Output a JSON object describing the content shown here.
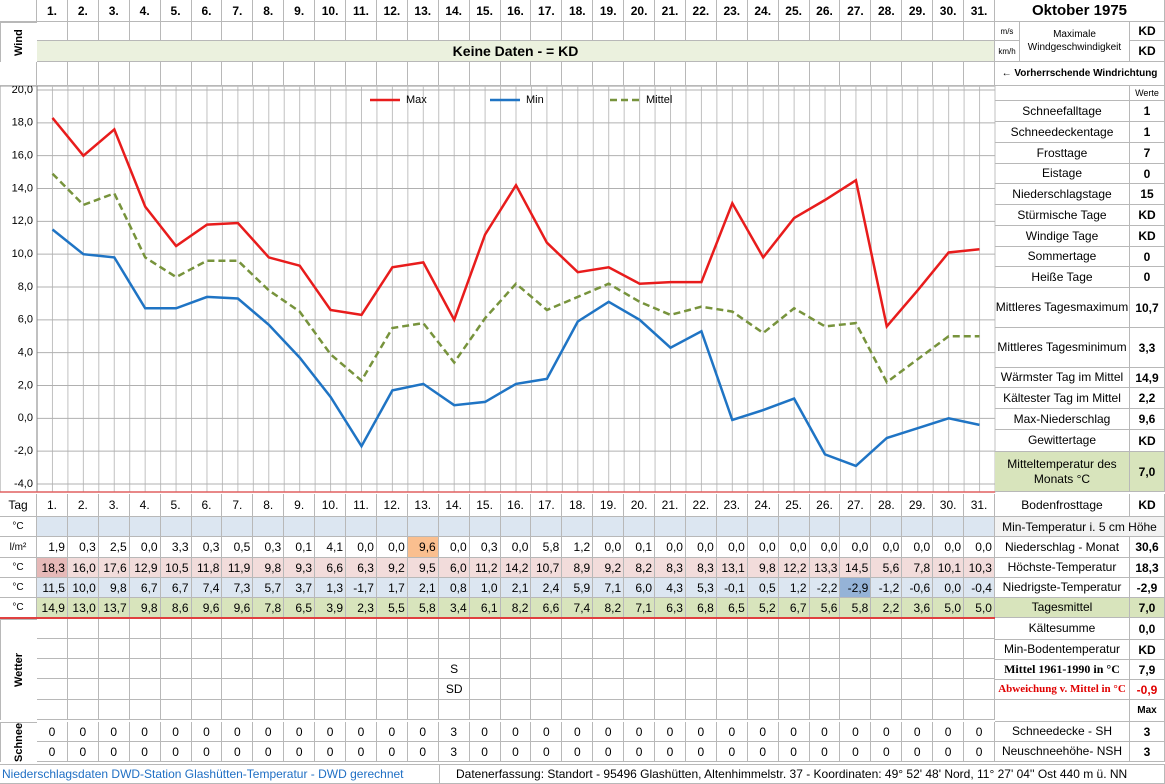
{
  "header": {
    "title": "Oktober 1975",
    "wind_label": "Wind",
    "wind_units": [
      "m/s",
      "km/h"
    ],
    "max_wind_label": "Maximale Windgeschwindigkeit",
    "max_wind_values": [
      "KD",
      "KD"
    ],
    "no_data": "Keine Daten -  = KD",
    "wind_direction": "← Vorherrschende Windrichtung"
  },
  "chart_data": {
    "type": "line",
    "categories": [
      "1.",
      "2.",
      "3.",
      "4.",
      "5.",
      "6.",
      "7.",
      "8.",
      "9.",
      "10.",
      "11.",
      "12.",
      "13.",
      "14.",
      "15.",
      "16.",
      "17.",
      "18.",
      "19.",
      "20.",
      "21.",
      "22.",
      "23.",
      "24.",
      "25.",
      "26.",
      "27.",
      "28.",
      "29.",
      "30.",
      "31."
    ],
    "series": [
      {
        "name": "Max",
        "color": "#e81c1c",
        "style": "solid",
        "values": [
          18.3,
          16.0,
          17.6,
          12.9,
          10.5,
          11.8,
          11.9,
          9.8,
          9.3,
          6.6,
          6.3,
          9.2,
          9.5,
          6.0,
          11.2,
          14.2,
          10.7,
          8.9,
          9.2,
          8.2,
          8.3,
          8.3,
          13.1,
          9.8,
          12.2,
          13.3,
          14.5,
          5.6,
          7.8,
          10.1,
          10.3
        ],
        "value_labels": [
          "18,3",
          "16,0",
          "17,6",
          "12,9",
          "10,5",
          "11,8",
          "11,9",
          "9,8",
          "9,3",
          "6,6",
          "6,3",
          "9,2",
          "9,5",
          "6,0",
          "11,2",
          "14,2",
          "10,7",
          "8,9",
          "9,2",
          "8,2",
          "8,3",
          "8,3",
          "13,1",
          "9,8",
          "12,2",
          "13,3",
          "14,5",
          "5,6",
          "7,8",
          "10,1",
          "10,3"
        ]
      },
      {
        "name": "Min",
        "color": "#1f74c4",
        "style": "solid",
        "values": [
          11.5,
          10.0,
          9.8,
          6.7,
          6.7,
          7.4,
          7.3,
          5.7,
          3.7,
          1.3,
          -1.7,
          1.7,
          2.1,
          0.8,
          1.0,
          2.1,
          2.4,
          5.9,
          7.1,
          6.0,
          4.3,
          5.3,
          -0.1,
          0.5,
          1.2,
          -2.2,
          -2.9,
          -1.2,
          -0.6,
          0.0,
          -0.4
        ],
        "value_labels": [
          "11,5",
          "10,0",
          "9,8",
          "6,7",
          "6,7",
          "7,4",
          "7,3",
          "5,7",
          "3,7",
          "1,3",
          "-1,7",
          "1,7",
          "2,1",
          "0,8",
          "1,0",
          "2,1",
          "2,4",
          "5,9",
          "7,1",
          "6,0",
          "4,3",
          "5,3",
          "-0,1",
          "0,5",
          "1,2",
          "-2,2",
          "-2,9",
          "-1,2",
          "-0,6",
          "0,0",
          "-0,4"
        ]
      },
      {
        "name": "Mittel",
        "color": "#77933c",
        "style": "dashed",
        "values": [
          14.9,
          13.0,
          13.7,
          9.8,
          8.6,
          9.6,
          9.6,
          7.8,
          6.5,
          3.9,
          2.3,
          5.5,
          5.8,
          3.4,
          6.1,
          8.2,
          6.6,
          7.4,
          8.2,
          7.1,
          6.3,
          6.8,
          6.5,
          5.2,
          6.7,
          5.6,
          5.8,
          2.2,
          3.6,
          5.0,
          5.0
        ],
        "value_labels": [
          "14,9",
          "13,0",
          "13,7",
          "9,8",
          "8,6",
          "9,6",
          "9,6",
          "7,8",
          "6,5",
          "3,9",
          "2,3",
          "5,5",
          "5,8",
          "3,4",
          "6,1",
          "8,2",
          "6,6",
          "7,4",
          "8,2",
          "7,1",
          "6,3",
          "6,8",
          "6,5",
          "5,2",
          "6,7",
          "5,6",
          "5,8",
          "2,2",
          "3,6",
          "5,0",
          "5,0"
        ]
      }
    ],
    "ylim": [
      -4,
      20
    ],
    "yticks": [
      {
        "value": 20,
        "label": "20,0"
      },
      {
        "value": 18,
        "label": "18,0"
      },
      {
        "value": 16,
        "label": "16,0"
      },
      {
        "value": 14,
        "label": "14,0"
      },
      {
        "value": 12,
        "label": "12,0"
      },
      {
        "value": 10,
        "label": "10,0"
      },
      {
        "value": 8,
        "label": "8,0"
      },
      {
        "value": 6,
        "label": "6,0"
      },
      {
        "value": 4,
        "label": "4,0"
      },
      {
        "value": 2,
        "label": "2,0"
      },
      {
        "value": 0,
        "label": "0,0"
      },
      {
        "value": -2,
        "label": "-2,0"
      },
      {
        "value": -4,
        "label": "-4,0"
      }
    ],
    "grid": true,
    "legend": "top"
  },
  "table": {
    "day_label": "Tag",
    "row_units": [
      "°C",
      "l/m²",
      "°C",
      "°C",
      "°C"
    ],
    "precipitation": {
      "values": [
        1.9,
        0.3,
        2.5,
        0.0,
        3.3,
        0.3,
        0.5,
        0.3,
        0.1,
        4.1,
        0.0,
        0.0,
        9.6,
        0.0,
        0.3,
        0.0,
        5.8,
        1.2,
        0.0,
        0.1,
        0.0,
        0.0,
        0.0,
        0.0,
        0.0,
        0.0,
        0.0,
        0.0,
        0.0,
        0.0,
        0.0
      ],
      "value_labels": [
        "1,9",
        "0,3",
        "2,5",
        "0,0",
        "3,3",
        "0,3",
        "0,5",
        "0,3",
        "0,1",
        "4,1",
        "0,0",
        "0,0",
        "9,6",
        "0,0",
        "0,3",
        "0,0",
        "5,8",
        "1,2",
        "0,0",
        "0,1",
        "0,0",
        "0,0",
        "0,0",
        "0,0",
        "0,0",
        "0,0",
        "0,0",
        "0,0",
        "0,0",
        "0,0",
        "0,0"
      ]
    }
  },
  "wetter": {
    "label": "Wetter",
    "rows": [
      [
        null,
        null,
        null,
        null,
        null,
        null,
        null,
        null,
        null,
        null,
        null,
        null,
        null,
        "S",
        null,
        null,
        null,
        null,
        null,
        null,
        null,
        null,
        null,
        null,
        null,
        null,
        null,
        null,
        null,
        null,
        null
      ],
      [
        null,
        null,
        null,
        null,
        null,
        null,
        null,
        null,
        null,
        null,
        null,
        null,
        null,
        "SD",
        null,
        null,
        null,
        null,
        null,
        null,
        null,
        null,
        null,
        null,
        null,
        null,
        null,
        null,
        null,
        null,
        null
      ]
    ]
  },
  "schnee": {
    "label": "Schnee",
    "rows": [
      [
        0,
        0,
        0,
        0,
        0,
        0,
        0,
        0,
        0,
        0,
        0,
        0,
        0,
        3,
        0,
        0,
        0,
        0,
        0,
        0,
        0,
        0,
        0,
        0,
        0,
        0,
        0,
        0,
        0,
        0,
        0
      ],
      [
        0,
        0,
        0,
        0,
        0,
        0,
        0,
        0,
        0,
        0,
        0,
        0,
        0,
        3,
        0,
        0,
        0,
        0,
        0,
        0,
        0,
        0,
        0,
        0,
        0,
        0,
        0,
        0,
        0,
        0,
        0
      ]
    ]
  },
  "stats": {
    "header": "Werte",
    "rows": [
      {
        "label": "Schneefalltage",
        "value": 1
      },
      {
        "label": "Schneedeckentage",
        "value": 1
      },
      {
        "label": "Frosttage",
        "value": 7
      },
      {
        "label": "Eistage",
        "value": 0
      },
      {
        "label": "Niederschlagstage",
        "value": 15
      },
      {
        "label": "Stürmische Tage",
        "value": "KD"
      },
      {
        "label": "Windige Tage",
        "value": "KD"
      },
      {
        "label": "Sommertage",
        "value": 0
      },
      {
        "label": "Heiße Tage",
        "value": 0
      },
      {
        "label": "Mittleres Tagesmaximum",
        "value": "10,7"
      },
      {
        "label": "Mittleres Tagesminimum",
        "value": "3,3"
      },
      {
        "label": "Wärmster Tag im Mittel",
        "value": "14,9"
      },
      {
        "label": "Kältester Tag im Mittel",
        "value": "2,2"
      },
      {
        "label": "Max-Niederschlag",
        "value": "9,6"
      },
      {
        "label": "Gewittertage",
        "value": "KD"
      },
      {
        "label": "Mitteltemperatur des Monats °C",
        "value": "7,0"
      },
      {
        "label": "Bodenfrosttage",
        "value": "KD"
      },
      {
        "label": "Min-Temperatur i. 5 cm Höhe"
      },
      {
        "label": "Niederschlag - Monat",
        "value": "30,6"
      },
      {
        "label": "Höchste-Temperatur",
        "value": "18,3"
      },
      {
        "label": "Niedrigste-Temperatur",
        "value": "-2,9"
      },
      {
        "label": "Tagesmittel",
        "value": "7,0"
      },
      {
        "label": "Kältesumme",
        "value": "0,0"
      },
      {
        "label": "Min-Bodentemperatur",
        "value": "KD"
      },
      {
        "label": "Mittel 1961-1990 in °C",
        "value": "7,9"
      },
      {
        "label": "Abweichung v. Mittel in °C",
        "value": "-0,9"
      },
      {
        "value": "Max"
      },
      {
        "label": "Schneedecke -  SH",
        "value": 3
      },
      {
        "label": "Neuschneehöhe- NSH",
        "value": 3
      }
    ]
  },
  "footer": {
    "left": "Niederschlagsdaten DWD-Station Glashütten-Temperatur -  DWD gerechnet",
    "right": "Datenerfassung: Standort -  95496 Glashütten, Altenhimmelstr. 37 - Koordinaten: 49° 52' 48' Nord,  11° 27' 04'' Ost  440 m ü. NN"
  }
}
